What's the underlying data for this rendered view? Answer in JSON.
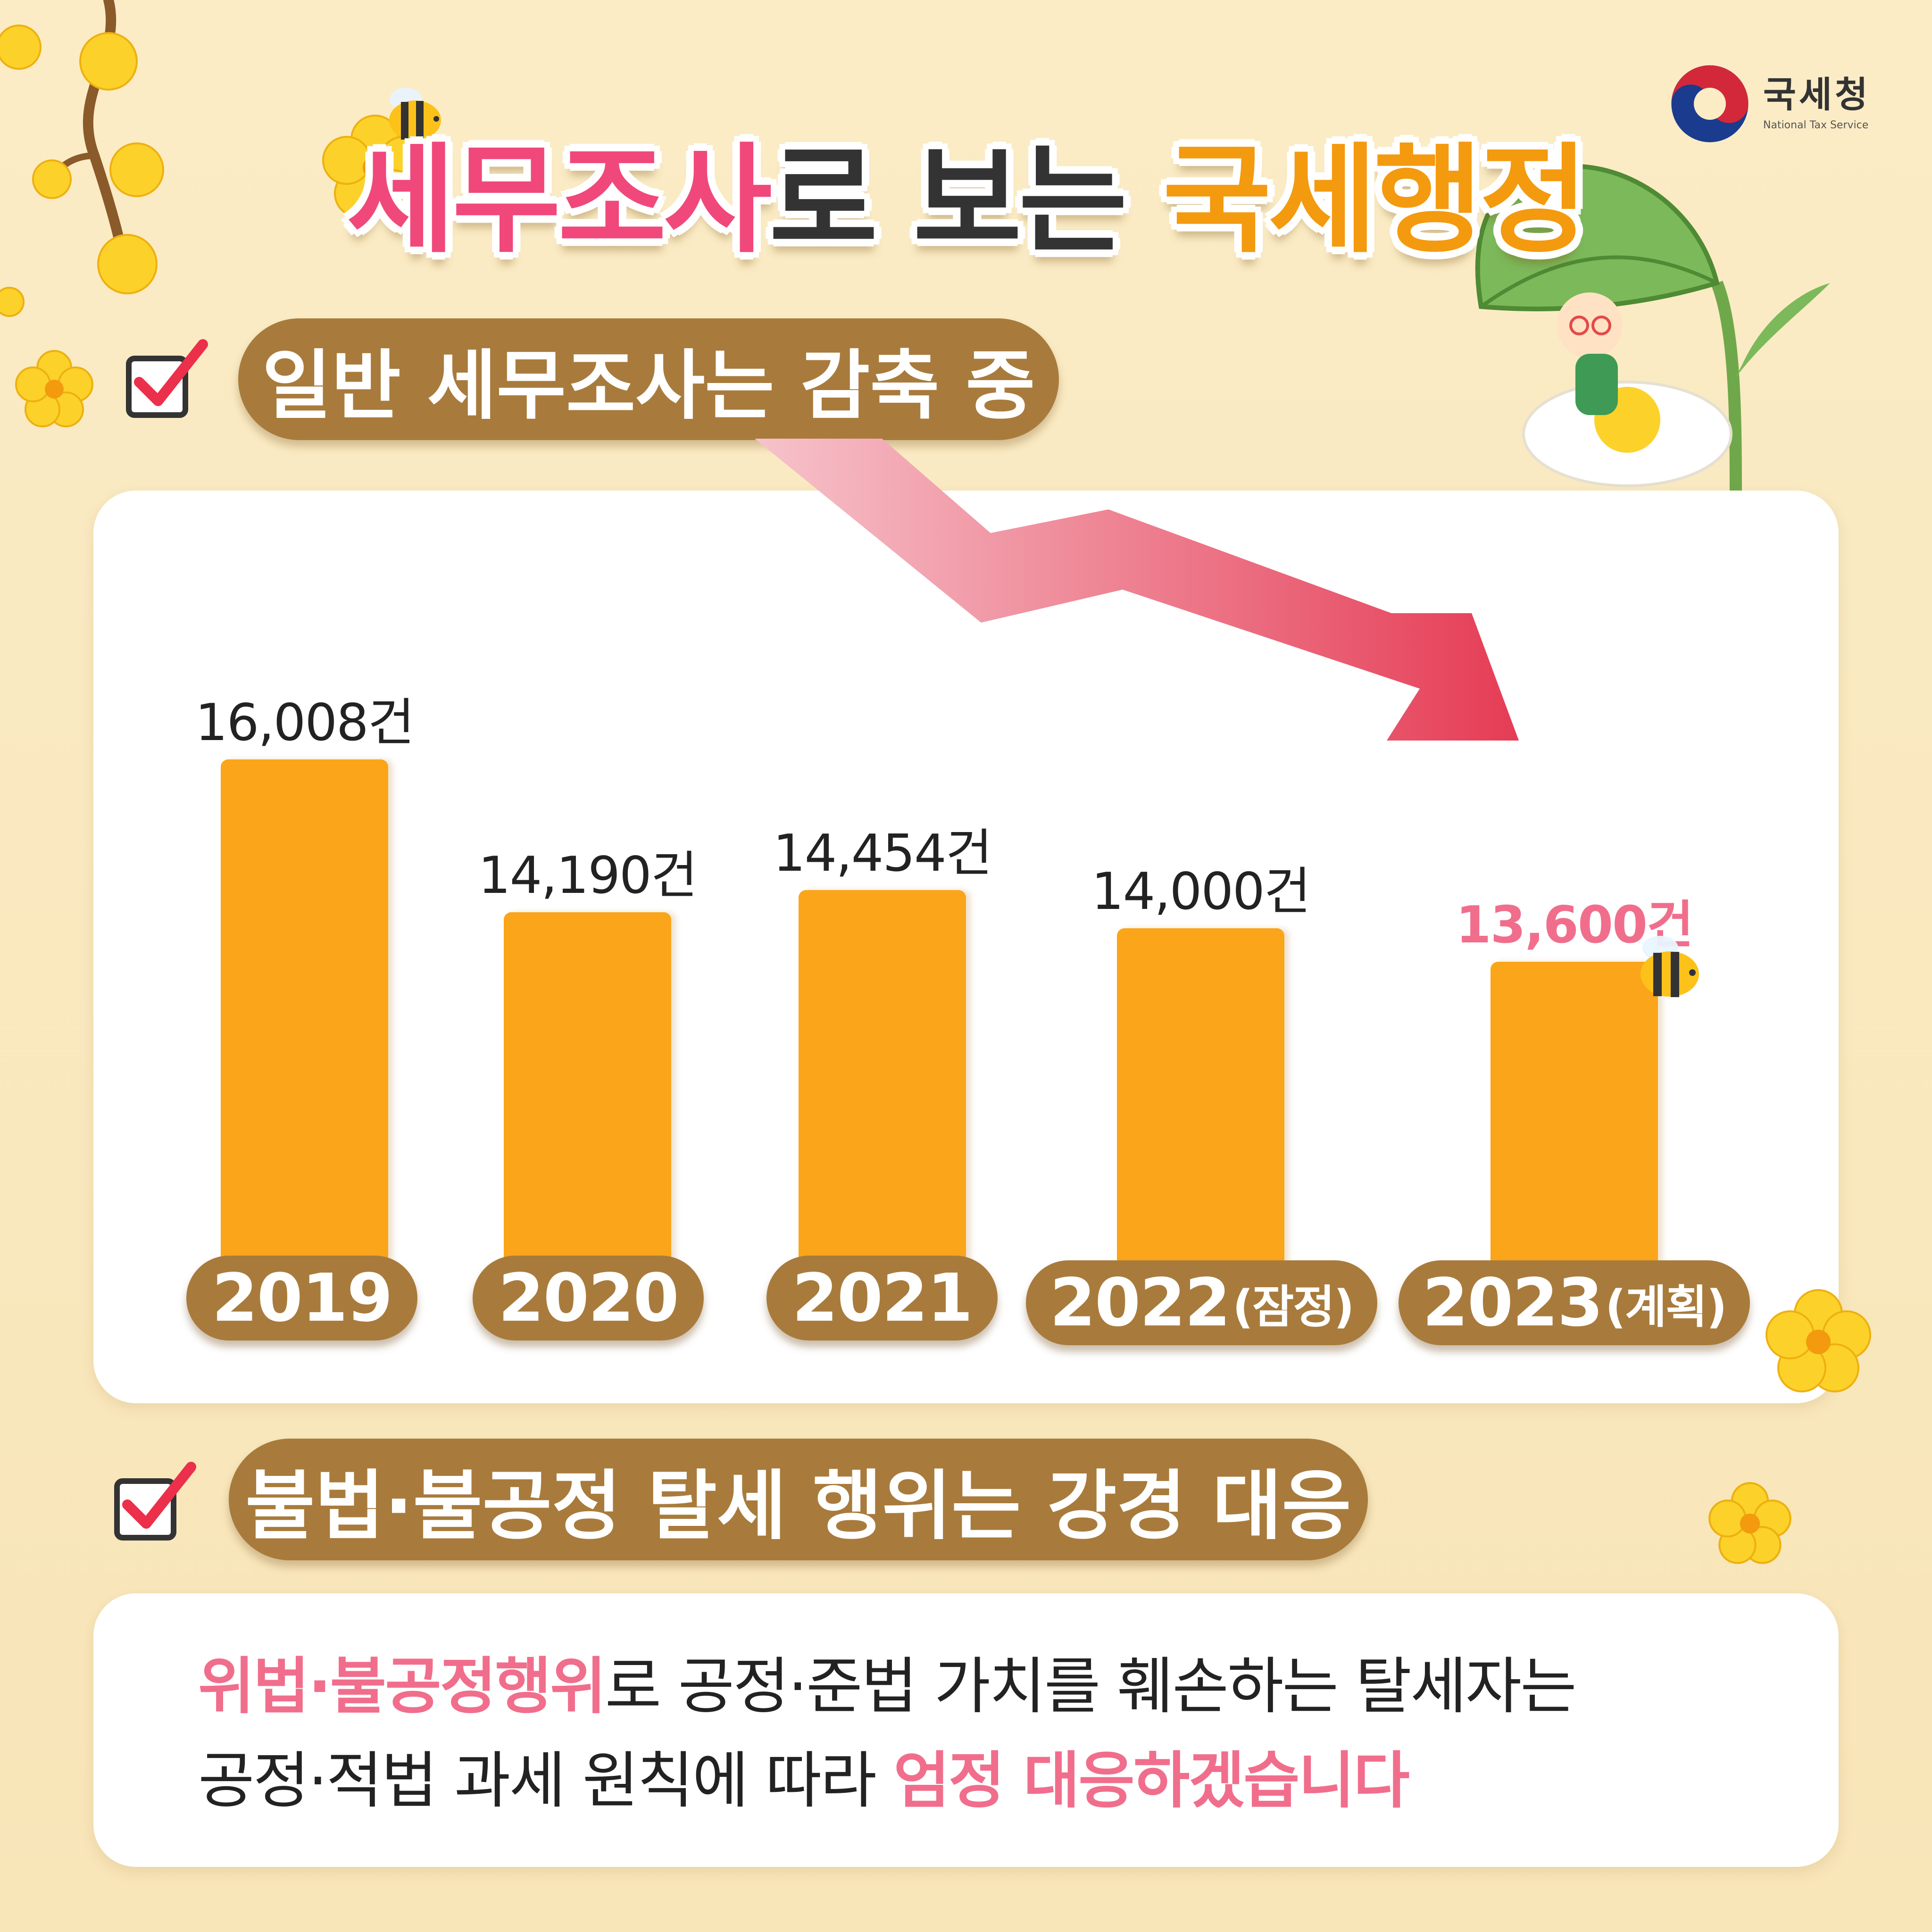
{
  "logo": {
    "name_ko": "국세청",
    "name_en": "National Tax Service"
  },
  "title": {
    "part1": "세무조사",
    "part2": "로 보는 ",
    "part3": "국세행정"
  },
  "section1": {
    "heading": "일반 세무조사는 감축 중"
  },
  "chart_data": {
    "type": "bar",
    "categories": [
      "2019",
      "2020",
      "2021",
      "2022(잠정)",
      "2023(계획)"
    ],
    "values": [
      16008,
      14190,
      14454,
      14000,
      13600
    ],
    "value_labels": [
      "16,008건",
      "14,190건",
      "14,454건",
      "14,000건",
      "13,600건"
    ],
    "title": "",
    "xlabel": "",
    "ylabel": "",
    "highlight_index": 4,
    "highlight_color": "#f06e8c",
    "bar_color": "#fba51a",
    "trend_arrow": "down",
    "grid": false
  },
  "section2": {
    "heading": "불법·불공정 탈세 행위는 강경 대응",
    "line1": {
      "em": "위법·불공정행위",
      "rest": "로 공정·준법 가치를 훼손하는 탈세자는"
    },
    "line2": {
      "rest": "공정·적법 과세 원칙에 따라 ",
      "em": "엄정 대응하겠습니다"
    }
  },
  "colors": {
    "pink": "#f0487a",
    "orange": "#f39a0f",
    "brown": "#a87b3c",
    "background": "#fbecc6"
  },
  "icons": [
    "checkbox-icon",
    "down-trend-arrow-icon",
    "bee-icon",
    "flower-icon",
    "leaf-icon",
    "character-icon",
    "logo-icon"
  ]
}
